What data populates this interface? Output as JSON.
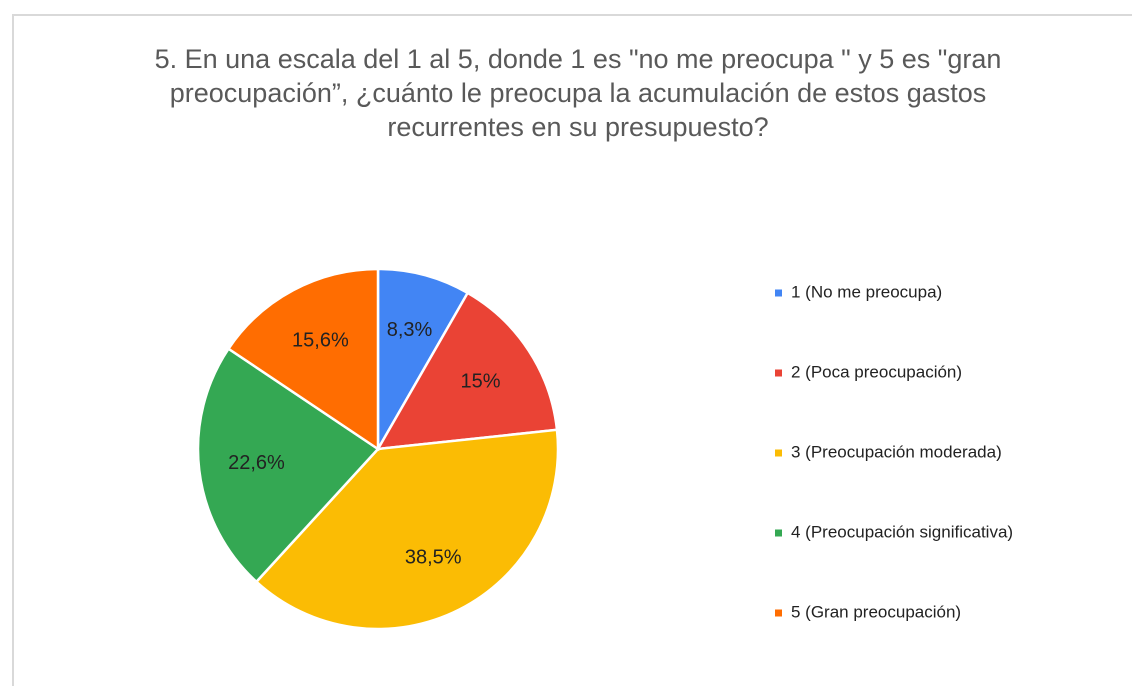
{
  "chart_data": {
    "type": "pie",
    "title": "5. En una escala del 1 al 5, donde 1 es \"no me preocupa \" y 5 es \"gran preocupación”, ¿cuánto le preocupa la acumulación de estos gastos recurrentes en su presupuesto?",
    "categories": [
      "1 (No me preocupa)",
      "2 (Poca preocupación)",
      "3 (Preocupación moderada)",
      "4 (Preocupación significativa)",
      "5 (Gran preocupación)"
    ],
    "values": [
      8.3,
      15,
      38.5,
      22.6,
      15.6
    ],
    "value_labels": [
      "8,3%",
      "15%",
      "38,5%",
      "22,6%",
      "15,6%"
    ],
    "colors": [
      "#4285f4",
      "#ea4335",
      "#fbbc04",
      "#34a853",
      "#ff6d01"
    ],
    "legend": "right"
  }
}
